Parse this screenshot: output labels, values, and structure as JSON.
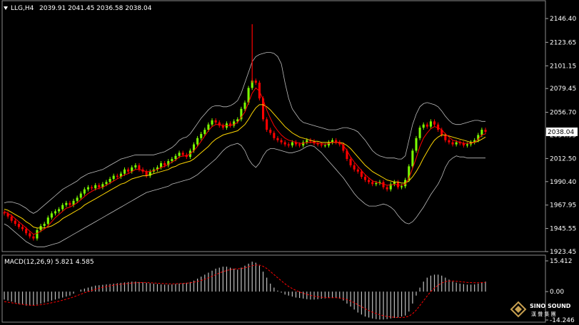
{
  "chart_data": [
    {
      "type": "candlestick",
      "header": "LLG,H4",
      "header_values": "2039.91 2041.45 2036.58 2038.04",
      "y_ticks": [
        "2146.40",
        "2123.65",
        "2101.15",
        "2079.45",
        "2056.70",
        "2034.95",
        "2012.50",
        "1990.40",
        "1967.95",
        "1945.55",
        "1923.45"
      ],
      "y_tick_values": [
        2146.4,
        2123.65,
        2101.15,
        2079.45,
        2056.7,
        2034.95,
        2012.5,
        1990.4,
        1967.95,
        1945.55,
        1923.45
      ],
      "current_price": "2038.04",
      "ylim": [
        1923.45,
        2146.4
      ],
      "close": [
        1960,
        1957,
        1953,
        1950,
        1947,
        1945,
        1941,
        1938,
        1936,
        1944,
        1948,
        1950,
        1956,
        1960,
        1962,
        1964,
        1968,
        1970,
        1968,
        1972,
        1975,
        1979,
        1983,
        1985,
        1984,
        1987,
        1985,
        1988,
        1990,
        1993,
        1996,
        1995,
        1998,
        2002,
        2000,
        2004,
        2006,
        2002,
        2000,
        1996,
        2000,
        2002,
        2004,
        2008,
        2006,
        2010,
        2012,
        2015,
        2018,
        2016,
        2014,
        2020,
        2026,
        2032,
        2036,
        2040,
        2045,
        2049,
        2047,
        2044,
        2042,
        2046,
        2044,
        2048,
        2050,
        2060,
        2066,
        2080,
        2087,
        2085,
        2070,
        2050,
        2040,
        2037,
        2032,
        2030,
        2028,
        2026,
        2025,
        2028,
        2026,
        2025,
        2028,
        2030,
        2029,
        2027,
        2026,
        2025,
        2025,
        2028,
        2030,
        2028,
        2026,
        2020,
        2012,
        2006,
        2002,
        2000,
        1995,
        1992,
        1990,
        1988,
        1989,
        1990,
        1985,
        1983,
        1988,
        1990,
        1985,
        1986,
        1992,
        2005,
        2020,
        2032,
        2042,
        2045,
        2043,
        2048,
        2045,
        2040,
        2035,
        2030,
        2028,
        2026,
        2028,
        2027,
        2025,
        2026,
        2028,
        2030,
        2035,
        2040,
        2038
      ],
      "ma_fast": [
        1962,
        1960,
        1958,
        1955,
        1952,
        1949,
        1946,
        1943,
        1940,
        1941,
        1943,
        1945,
        1948,
        1952,
        1956,
        1959,
        1962,
        1965,
        1966,
        1968,
        1970,
        1973,
        1976,
        1979,
        1981,
        1983,
        1984,
        1985,
        1987,
        1989,
        1991,
        1993,
        1995,
        1997,
        1998,
        2000,
        2002,
        2002,
        2001,
        2000,
        2000,
        2001,
        2002,
        2004,
        2005,
        2007,
        2009,
        2011,
        2014,
        2015,
        2015,
        2017,
        2020,
        2024,
        2029,
        2034,
        2039,
        2043,
        2045,
        2045,
        2044,
        2044,
        2044,
        2045,
        2047,
        2052,
        2057,
        2066,
        2075,
        2080,
        2077,
        2069,
        2059,
        2051,
        2044,
        2039,
        2035,
        2032,
        2030,
        2029,
        2028,
        2027,
        2027,
        2028,
        2028,
        2028,
        2027,
        2027,
        2026,
        2027,
        2028,
        2028,
        2028,
        2025,
        2020,
        2014,
        2009,
        2005,
        2001,
        1997,
        1994,
        1991,
        1990,
        1989,
        1988,
        1987,
        1987,
        1988,
        1987,
        1987,
        1988,
        1994,
        2003,
        2013,
        2024,
        2032,
        2037,
        2041,
        2043,
        2042,
        2040,
        2036,
        2033,
        2030,
        2029,
        2028,
        2027,
        2027,
        2027,
        2028,
        2031,
        2035,
        2036
      ],
      "ma_slow": [
        1964,
        1963,
        1961,
        1959,
        1957,
        1955,
        1952,
        1950,
        1947,
        1946,
        1946,
        1946,
        1947,
        1948,
        1950,
        1952,
        1955,
        1957,
        1959,
        1961,
        1963,
        1965,
        1968,
        1970,
        1972,
        1974,
        1976,
        1978,
        1980,
        1982,
        1984,
        1986,
        1988,
        1989,
        1991,
        1993,
        1994,
        1995,
        1996,
        1996,
        1997,
        1998,
        1999,
        2000,
        2001,
        2002,
        2004,
        2005,
        2007,
        2008,
        2009,
        2010,
        2012,
        2015,
        2018,
        2021,
        2024,
        2028,
        2031,
        2033,
        2035,
        2036,
        2037,
        2038,
        2039,
        2042,
        2045,
        2050,
        2056,
        2061,
        2064,
        2064,
        2062,
        2059,
        2055,
        2051,
        2047,
        2043,
        2040,
        2037,
        2035,
        2033,
        2032,
        2031,
        2030,
        2029,
        2029,
        2028,
        2028,
        2028,
        2028,
        2028,
        2028,
        2027,
        2025,
        2022,
        2018,
        2014,
        2010,
        2006,
        2003,
        2000,
        1998,
        1996,
        1994,
        1992,
        1991,
        1990,
        1990,
        1989,
        1989,
        1991,
        1995,
        2000,
        2006,
        2013,
        2019,
        2025,
        2030,
        2033,
        2035,
        2035,
        2034,
        2033,
        2032,
        2031,
        2030,
        2029,
        2028,
        2028,
        2029,
        2031,
        2033
      ],
      "bb_upper": [
        1970,
        1971,
        1971,
        1970,
        1969,
        1967,
        1965,
        1962,
        1960,
        1962,
        1965,
        1968,
        1971,
        1974,
        1977,
        1980,
        1983,
        1985,
        1987,
        1989,
        1991,
        1994,
        1996,
        1998,
        1999,
        2000,
        2001,
        2002,
        2004,
        2006,
        2008,
        2010,
        2012,
        2013,
        2014,
        2015,
        2016,
        2016,
        2016,
        2016,
        2016,
        2016,
        2017,
        2018,
        2019,
        2021,
        2023,
        2026,
        2030,
        2032,
        2033,
        2036,
        2041,
        2046,
        2051,
        2055,
        2059,
        2062,
        2063,
        2063,
        2062,
        2062,
        2063,
        2065,
        2068,
        2075,
        2085,
        2095,
        2105,
        2110,
        2112,
        2113,
        2114,
        2114,
        2113,
        2110,
        2103,
        2085,
        2070,
        2060,
        2055,
        2050,
        2047,
        2046,
        2045,
        2044,
        2043,
        2042,
        2041,
        2040,
        2040,
        2040,
        2041,
        2042,
        2042,
        2041,
        2040,
        2038,
        2034,
        2030,
        2025,
        2020,
        2017,
        2015,
        2014,
        2013,
        2013,
        2013,
        2012,
        2012,
        2015,
        2030,
        2045,
        2055,
        2062,
        2065,
        2066,
        2065,
        2064,
        2062,
        2058,
        2053,
        2049,
        2046,
        2045,
        2045,
        2046,
        2047,
        2048,
        2049,
        2049,
        2048,
        2048
      ],
      "bb_lower": [
        1950,
        1948,
        1945,
        1942,
        1939,
        1936,
        1933,
        1931,
        1929,
        1928,
        1928,
        1928,
        1929,
        1930,
        1931,
        1932,
        1934,
        1936,
        1938,
        1940,
        1942,
        1944,
        1946,
        1948,
        1950,
        1952,
        1954,
        1956,
        1958,
        1960,
        1962,
        1964,
        1966,
        1968,
        1970,
        1972,
        1974,
        1976,
        1978,
        1980,
        1981,
        1982,
        1983,
        1984,
        1985,
        1986,
        1988,
        1989,
        1990,
        1991,
        1992,
        1993,
        1995,
        1997,
        2000,
        2003,
        2006,
        2009,
        2012,
        2016,
        2020,
        2023,
        2025,
        2026,
        2027,
        2025,
        2020,
        2012,
        2007,
        2004,
        2008,
        2015,
        2020,
        2022,
        2022,
        2021,
        2020,
        2019,
        2018,
        2018,
        2019,
        2020,
        2022,
        2024,
        2025,
        2024,
        2021,
        2018,
        2014,
        2010,
        2006,
        2002,
        1998,
        1994,
        1989,
        1984,
        1979,
        1975,
        1972,
        1969,
        1967,
        1967,
        1967,
        1968,
        1969,
        1968,
        1966,
        1963,
        1958,
        1954,
        1951,
        1950,
        1952,
        1956,
        1961,
        1966,
        1972,
        1978,
        1983,
        1988,
        1995,
        2004,
        2010,
        2013,
        2015,
        2014,
        2014,
        2013,
        2013,
        2013,
        2013,
        2013,
        2013
      ],
      "series": [
        {
          "role": "moving-average-fast",
          "color": "#FF0000"
        },
        {
          "role": "moving-average-slow",
          "color": "#FFD700"
        },
        {
          "role": "bollinger-bands",
          "color": "#C0C0C0"
        }
      ],
      "colors": {
        "up": "#7CFC00",
        "down": "#FF0000",
        "background": "#000000",
        "grid": "#555555"
      }
    },
    {
      "type": "bar",
      "header": "MACD(12,26,9) 5.821 4.585",
      "y_ticks": [
        "15.412",
        "0.00",
        "-14.246"
      ],
      "y_tick_values": [
        15.412,
        0,
        -14.246
      ],
      "ylim": [
        -14.246,
        15.412
      ],
      "histogram": [
        -4,
        -4.5,
        -5,
        -5.5,
        -6,
        -6.5,
        -7,
        -7,
        -7,
        -6.5,
        -6,
        -5.5,
        -5,
        -4.5,
        -4,
        -3.5,
        -3,
        -2.5,
        -2,
        -1,
        0,
        1,
        1.5,
        2,
        2.5,
        3,
        3.2,
        3.4,
        3.6,
        3.8,
        4,
        4.2,
        4.4,
        4.6,
        4.8,
        5,
        5,
        4.8,
        4.6,
        4.4,
        4.2,
        4.0,
        3.8,
        3.6,
        3.5,
        3.5,
        3.6,
        3.8,
        4,
        4.2,
        4.4,
        4.8,
        5.5,
        6.5,
        7.5,
        8.5,
        9.5,
        10.5,
        11.5,
        12,
        12.5,
        12.5,
        12,
        11.5,
        11,
        12,
        13,
        14,
        15,
        14.5,
        13,
        10,
        7,
        4,
        2,
        0.5,
        -0.5,
        -1.5,
        -2,
        -2.5,
        -3,
        -3.2,
        -3.5,
        -3.8,
        -4,
        -4,
        -3.8,
        -3.6,
        -3.4,
        -3.2,
        -3,
        -3,
        -3.5,
        -4.5,
        -6,
        -7.5,
        -9,
        -10.5,
        -11.5,
        -12.5,
        -13,
        -13.5,
        -13.8,
        -14,
        -14,
        -13.8,
        -13.5,
        -13.2,
        -13,
        -12.5,
        -12,
        -10,
        -6,
        -2,
        2,
        5,
        7,
        8,
        8.5,
        8.5,
        8,
        7,
        6,
        5,
        4.5,
        4,
        3.8,
        3.5,
        3.5,
        3.6,
        4,
        4.5,
        5
      ],
      "signal": [
        -5,
        -5.3,
        -5.6,
        -5.9,
        -6.2,
        -6.4,
        -6.6,
        -6.8,
        -6.9,
        -6.8,
        -6.6,
        -6.3,
        -6,
        -5.6,
        -5.2,
        -4.8,
        -4.3,
        -3.8,
        -3.3,
        -2.7,
        -2,
        -1.3,
        -0.6,
        0,
        0.6,
        1.2,
        1.7,
        2.1,
        2.5,
        2.9,
        3.2,
        3.5,
        3.7,
        3.9,
        4.1,
        4.3,
        4.4,
        4.5,
        4.5,
        4.5,
        4.4,
        4.3,
        4.2,
        4.1,
        4,
        3.9,
        3.9,
        3.9,
        4,
        4.1,
        4.2,
        4.4,
        4.7,
        5.1,
        5.6,
        6.2,
        6.9,
        7.7,
        8.5,
        9.3,
        10,
        10.6,
        11,
        11.3,
        11.4,
        11.6,
        11.9,
        12.4,
        13,
        13.3,
        13.3,
        12.7,
        11.6,
        10.1,
        8.5,
        6.9,
        5.4,
        3.9,
        2.6,
        1.5,
        0.6,
        -0.2,
        -0.8,
        -1.4,
        -1.9,
        -2.3,
        -2.6,
        -2.8,
        -3,
        -3.1,
        -3.1,
        -3.1,
        -3.2,
        -3.5,
        -4,
        -4.7,
        -5.6,
        -6.6,
        -7.6,
        -8.6,
        -9.5,
        -10.3,
        -11,
        -11.6,
        -12.1,
        -12.5,
        -12.7,
        -12.9,
        -13,
        -13,
        -12.8,
        -12.3,
        -11.1,
        -9.3,
        -7,
        -4.6,
        -2.2,
        0,
        1.8,
        3.2,
        4.3,
        5,
        5.3,
        5.3,
        5.2,
        5,
        4.8,
        4.6,
        4.5,
        4.4,
        4.4,
        4.5,
        4.6
      ],
      "colors": {
        "histogram": "#C0C0C0",
        "signal": "#FF0000"
      }
    }
  ],
  "watermark": {
    "name": "SINO SOUND",
    "subtitle": "漢 聲 集 團"
  }
}
